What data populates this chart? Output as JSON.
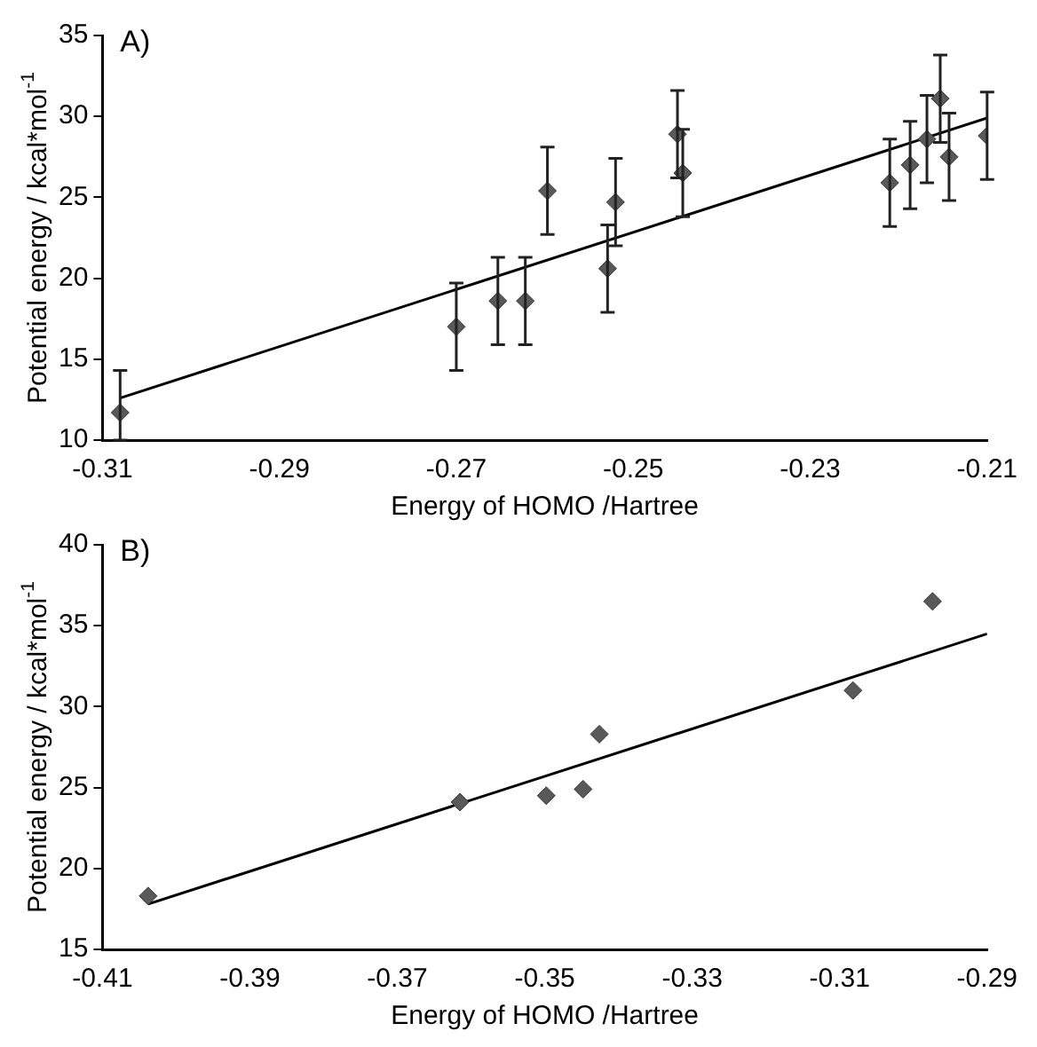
{
  "chart_data": [
    {
      "type": "scatter",
      "annotations": [
        "A)"
      ],
      "xlabel": "Energy of HOMO /Hartree",
      "ylabel": "Potential energy / kcal*mol$^{-1}$",
      "xlim": [
        -0.31,
        -0.21
      ],
      "xticks": [
        -0.31,
        -0.29,
        -0.27,
        -0.25,
        -0.23,
        -0.21
      ],
      "ylim": [
        10,
        35
      ],
      "yticks": [
        10,
        15,
        20,
        25,
        30,
        35
      ],
      "grid": false,
      "legend": false,
      "marker": "diamond",
      "series": [
        {
          "type": "scatter",
          "color": "#595959",
          "x": [
            -0.308,
            -0.27,
            -0.2653,
            -0.2622,
            -0.2597,
            -0.2529,
            -0.252,
            -0.245,
            -0.2444,
            -0.221,
            -0.2187,
            -0.2168,
            -0.2153,
            -0.2143,
            -0.21
          ],
          "values": [
            11.7,
            17.0,
            18.6,
            18.6,
            25.4,
            20.6,
            24.7,
            28.9,
            26.5,
            25.9,
            27.0,
            28.6,
            31.1,
            27.5,
            28.8
          ],
          "errors": [
            [
              10,
              14.3
            ],
            2.7,
            2.7,
            2.7,
            2.7,
            2.7,
            2.7,
            2.7,
            2.7,
            2.7,
            2.7,
            2.7,
            2.7,
            2.7,
            2.7
          ]
        },
        {
          "type": "line",
          "color": "#000000",
          "marker": "none",
          "x": [
            -0.308,
            -0.21
          ],
          "values": [
            12.6,
            29.9
          ]
        }
      ]
    },
    {
      "type": "scatter",
      "annotations": [
        "B)"
      ],
      "xlabel": "Energy of HOMO /Hartree",
      "ylabel": "Potential energy / kcal*mol$^{-1}$",
      "xlim": [
        -0.41,
        -0.29
      ],
      "xticks": [
        -0.41,
        -0.39,
        -0.37,
        -0.35,
        -0.33,
        -0.31,
        -0.29
      ],
      "ylim": [
        15,
        40
      ],
      "yticks": [
        15,
        20,
        25,
        30,
        35,
        40
      ],
      "grid": false,
      "legend": false,
      "marker": "diamond",
      "series": [
        {
          "type": "scatter",
          "color": "#595959",
          "x": [
            -0.4038,
            -0.3615,
            -0.3498,
            -0.3448,
            -0.3426,
            -0.3082,
            -0.2974
          ],
          "values": [
            18.3,
            24.1,
            24.5,
            24.9,
            28.3,
            31.0,
            36.5
          ]
        },
        {
          "type": "line",
          "color": "#000000",
          "marker": "none",
          "x": [
            -0.4038,
            -0.29
          ],
          "values": [
            17.8,
            34.5
          ]
        }
      ]
    }
  ]
}
